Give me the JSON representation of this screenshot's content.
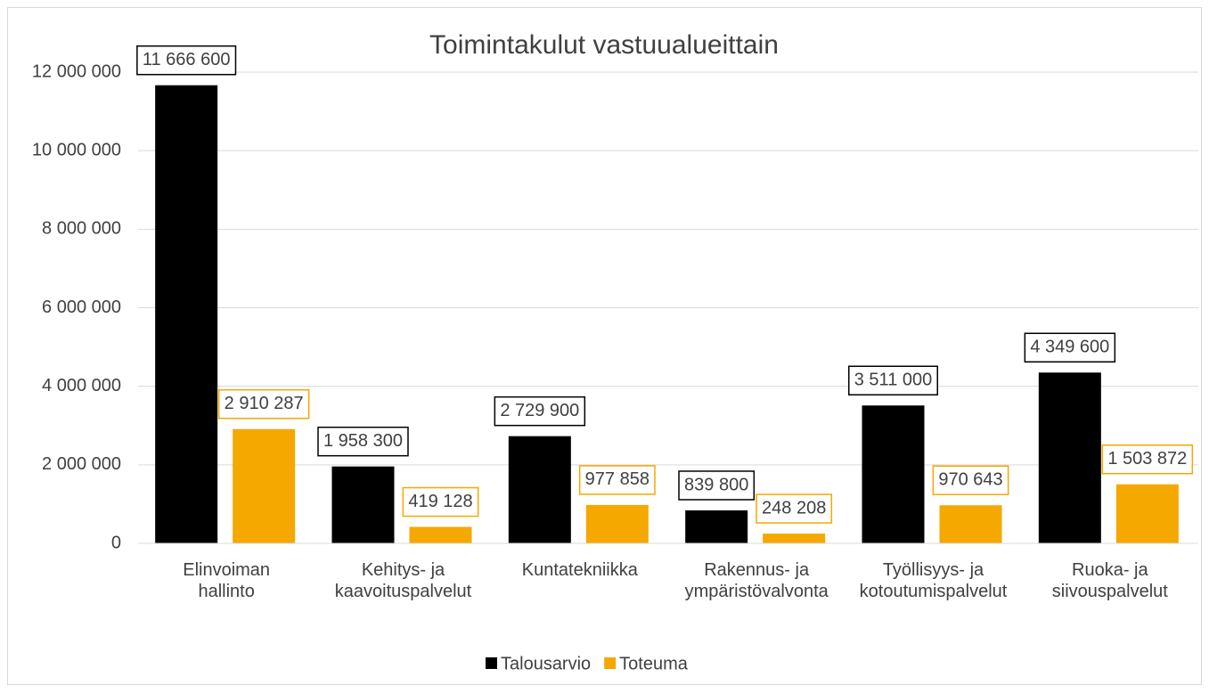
{
  "chart_data": {
    "type": "bar",
    "title": "Toimintakulut vastuualueittain",
    "categories": [
      "Elinvoiman\nhallinto",
      "Kehitys- ja\nkaavoituspalvelut",
      "Kuntatekniikka",
      "Rakennus- ja\nympäristövalvonta",
      "Työllisyys- ja\nkotoutumispalvelut",
      "Ruoka- ja\nsiivouspalvelut"
    ],
    "series": [
      {
        "name": "Talousarvio",
        "color": "#000000",
        "values": [
          11666600,
          1958300,
          2729900,
          839800,
          3511000,
          4349600
        ],
        "value_labels": [
          "11 666 600",
          "1 958 300",
          "2 729 900",
          "839 800",
          "3 511 000",
          "4 349 600"
        ]
      },
      {
        "name": "Toteuma",
        "color": "#f5a800",
        "values": [
          2910287,
          419128,
          977858,
          248208,
          970643,
          1503872
        ],
        "value_labels": [
          "2 910 287",
          "419 128",
          "977 858",
          "248 208",
          "970 643",
          "1 503 872"
        ]
      }
    ],
    "ylim": [
      0,
      12000000
    ],
    "yticks": [
      0,
      {
        "value": 2000000,
        "label": "2 000 000"
      },
      {
        "value": 4000000,
        "label": "4 000 000"
      },
      {
        "value": 6000000,
        "label": "6 000 000"
      },
      {
        "value": 8000000,
        "label": "8 000 000"
      },
      {
        "value": 10000000,
        "label": "10 000 000"
      },
      {
        "value": 12000000,
        "label": "12 000 000"
      }
    ],
    "grid": true,
    "legend": "bottom"
  }
}
